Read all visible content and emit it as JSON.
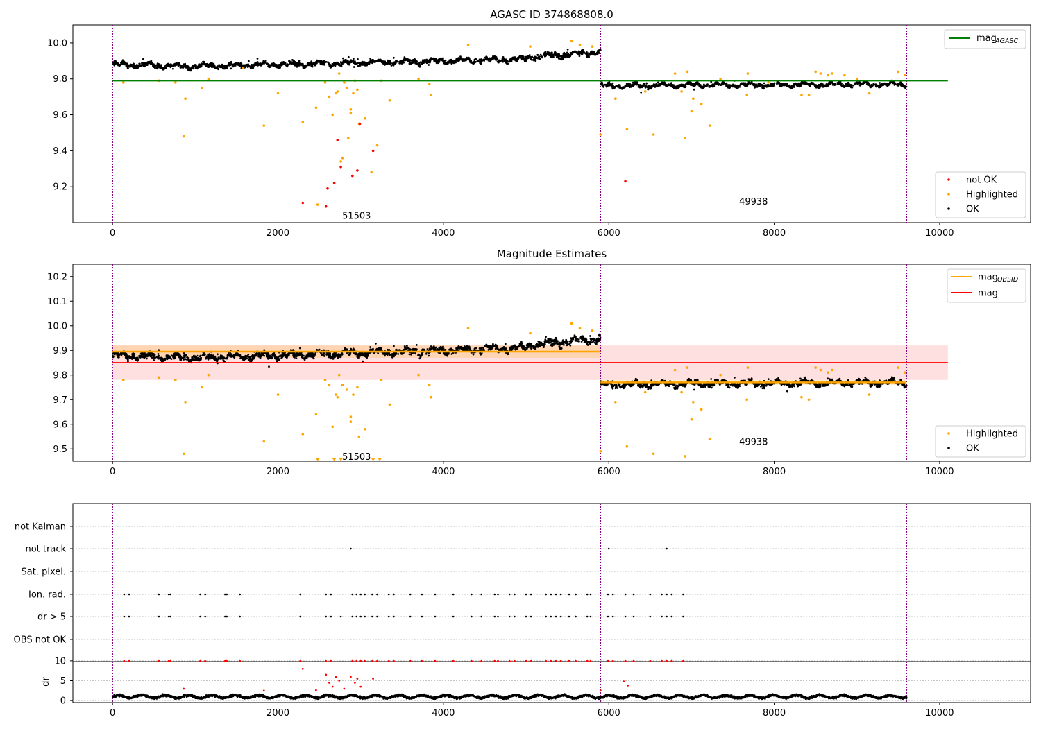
{
  "chart_data": [
    {
      "type": "scatter",
      "title": "AGASC ID 374868808.0",
      "xlim": [
        -480,
        11100
      ],
      "ylim": [
        9.0,
        10.1
      ],
      "xticks": [
        0,
        2000,
        4000,
        6000,
        8000,
        10000
      ],
      "yticks": [
        9.2,
        9.4,
        9.6,
        9.8,
        10.0
      ],
      "ytick_labels": [
        "9.2",
        "9.4",
        "9.6",
        "9.8",
        "10.0"
      ],
      "vlines": [
        0,
        5900,
        9600
      ],
      "obsid_labels": [
        {
          "text": "51503",
          "x": 2950,
          "y": 9.04
        },
        {
          "text": "49938",
          "x": 7750,
          "y": 9.12
        }
      ],
      "hline_label": "mag",
      "hline_label_sub": "AGASC",
      "mag_agasc": 9.79,
      "mag_agasc_range": [
        0,
        10100
      ],
      "legend_upper": "top-right",
      "legend_lower": "bottom-right",
      "series": [
        {
          "name": "not OK",
          "color": "#ff0000"
        },
        {
          "name": "Highlighted",
          "color": "#ffa500"
        },
        {
          "name": "OK",
          "color": "#000000"
        }
      ],
      "ok_band": [
        {
          "x0": 0,
          "x1": 1000,
          "y0": 9.88,
          "y1": 9.87,
          "spread": 0.025
        },
        {
          "x0": 1000,
          "x1": 3000,
          "y0": 9.87,
          "y1": 9.89,
          "spread": 0.025
        },
        {
          "x0": 3000,
          "x1": 5000,
          "y0": 9.89,
          "y1": 9.91,
          "spread": 0.025
        },
        {
          "x0": 5000,
          "x1": 5900,
          "y0": 9.92,
          "y1": 9.95,
          "spread": 0.03
        },
        {
          "x0": 5900,
          "x1": 7000,
          "y0": 9.76,
          "y1": 9.765,
          "spread": 0.02
        },
        {
          "x0": 7000,
          "x1": 9600,
          "y0": 9.765,
          "y1": 9.77,
          "spread": 0.02
        }
      ],
      "highlighted_points": [
        [
          130,
          9.78
        ],
        [
          560,
          9.79
        ],
        [
          760,
          9.78
        ],
        [
          860,
          9.48
        ],
        [
          880,
          9.69
        ],
        [
          1080,
          9.75
        ],
        [
          1160,
          9.8
        ],
        [
          1580,
          9.86
        ],
        [
          1830,
          9.54
        ],
        [
          2000,
          9.72
        ],
        [
          2300,
          9.56
        ],
        [
          2460,
          9.64
        ],
        [
          2480,
          9.1
        ],
        [
          2570,
          9.78
        ],
        [
          2620,
          9.7
        ],
        [
          2660,
          9.6
        ],
        [
          2700,
          9.72
        ],
        [
          2720,
          9.73
        ],
        [
          2740,
          9.83
        ],
        [
          2760,
          9.34
        ],
        [
          2780,
          9.36
        ],
        [
          2800,
          9.78
        ],
        [
          2830,
          9.75
        ],
        [
          2850,
          9.47
        ],
        [
          2880,
          9.61
        ],
        [
          2880,
          9.63
        ],
        [
          2910,
          9.72
        ],
        [
          2930,
          9.79
        ],
        [
          2960,
          9.74
        ],
        [
          2980,
          9.55
        ],
        [
          3050,
          9.58
        ],
        [
          3130,
          9.28
        ],
        [
          3200,
          9.43
        ],
        [
          3250,
          9.79
        ],
        [
          3350,
          9.68
        ],
        [
          3700,
          9.8
        ],
        [
          3830,
          9.77
        ],
        [
          3850,
          9.71
        ],
        [
          4300,
          9.99
        ],
        [
          5050,
          9.98
        ],
        [
          5550,
          10.01
        ],
        [
          5650,
          9.99
        ],
        [
          5800,
          9.98
        ],
        [
          5900,
          9.49
        ],
        [
          6080,
          9.69
        ],
        [
          6220,
          9.52
        ],
        [
          6440,
          9.73
        ],
        [
          6540,
          9.49
        ],
        [
          6800,
          9.83
        ],
        [
          6880,
          9.73
        ],
        [
          6920,
          9.47
        ],
        [
          6950,
          9.84
        ],
        [
          7000,
          9.62
        ],
        [
          7020,
          9.69
        ],
        [
          7120,
          9.66
        ],
        [
          7220,
          9.54
        ],
        [
          7350,
          9.8
        ],
        [
          7670,
          9.71
        ],
        [
          7680,
          9.83
        ],
        [
          7930,
          9.78
        ],
        [
          8330,
          9.71
        ],
        [
          8420,
          9.71
        ],
        [
          8500,
          9.84
        ],
        [
          8560,
          9.83
        ],
        [
          8650,
          9.82
        ],
        [
          8700,
          9.83
        ],
        [
          8850,
          9.82
        ],
        [
          9000,
          9.8
        ],
        [
          9150,
          9.72
        ],
        [
          9500,
          9.84
        ],
        [
          9580,
          9.82
        ]
      ],
      "notok_points": [
        [
          2300,
          9.11
        ],
        [
          2580,
          9.09
        ],
        [
          2600,
          9.19
        ],
        [
          2680,
          9.22
        ],
        [
          2720,
          9.46
        ],
        [
          2760,
          9.31
        ],
        [
          2900,
          9.26
        ],
        [
          2960,
          9.29
        ],
        [
          2990,
          9.55
        ],
        [
          3150,
          9.4
        ],
        [
          6200,
          9.23
        ]
      ]
    },
    {
      "type": "scatter",
      "title": "Magnitude Estimates",
      "xlim": [
        -480,
        11100
      ],
      "ylim": [
        9.45,
        10.25
      ],
      "xticks": [
        0,
        2000,
        4000,
        6000,
        8000,
        10000
      ],
      "yticks": [
        9.5,
        9.6,
        9.7,
        9.8,
        9.9,
        10.0,
        10.1,
        10.2
      ],
      "ytick_labels": [
        "9.5",
        "9.6",
        "9.7",
        "9.8",
        "9.9",
        "10.0",
        "10.1",
        "10.2"
      ],
      "vlines": [
        0,
        5900,
        9600
      ],
      "obsid_labels": [
        {
          "text": "51503",
          "x": 2950,
          "y": 9.47
        },
        {
          "text": "49938",
          "x": 7750,
          "y": 9.53
        }
      ],
      "mag": 9.85,
      "mag_band": [
        9.78,
        9.92
      ],
      "mag_range": [
        0,
        10100
      ],
      "mag_obsid": [
        {
          "x0": 0,
          "x1": 5900,
          "value": 9.895,
          "band": [
            9.87,
            9.92
          ]
        },
        {
          "x0": 5900,
          "x1": 9600,
          "value": 9.77,
          "band": [
            9.76,
            9.78
          ]
        }
      ],
      "legend_upper_items": [
        {
          "label": "mag",
          "sub": "OBSID",
          "color": "#ffa500"
        },
        {
          "label": "mag",
          "sub": "",
          "color": "#ff0000"
        }
      ],
      "legend_upper": "top-right",
      "legend_lower": "bottom-right",
      "series": [
        {
          "name": "Highlighted",
          "color": "#ffa500"
        },
        {
          "name": "OK",
          "color": "#000000"
        }
      ],
      "ok_band": [
        {
          "x0": 0,
          "x1": 1000,
          "y0": 9.88,
          "y1": 9.87,
          "spread": 0.025
        },
        {
          "x0": 1000,
          "x1": 3000,
          "y0": 9.87,
          "y1": 9.89,
          "spread": 0.025
        },
        {
          "x0": 3000,
          "x1": 5000,
          "y0": 9.89,
          "y1": 9.91,
          "spread": 0.025
        },
        {
          "x0": 5000,
          "x1": 5900,
          "y0": 9.92,
          "y1": 9.95,
          "spread": 0.03
        },
        {
          "x0": 5900,
          "x1": 7000,
          "y0": 9.76,
          "y1": 9.765,
          "spread": 0.02
        },
        {
          "x0": 7000,
          "x1": 9600,
          "y0": 9.765,
          "y1": 9.77,
          "spread": 0.02
        }
      ],
      "highlighted_points": [
        [
          130,
          9.78
        ],
        [
          560,
          9.79
        ],
        [
          760,
          9.78
        ],
        [
          860,
          9.48
        ],
        [
          880,
          9.69
        ],
        [
          1080,
          9.75
        ],
        [
          1160,
          9.8
        ],
        [
          1830,
          9.53
        ],
        [
          2000,
          9.72
        ],
        [
          2300,
          9.56
        ],
        [
          2460,
          9.64
        ],
        [
          2570,
          9.78
        ],
        [
          2620,
          9.76
        ],
        [
          2660,
          9.59
        ],
        [
          2700,
          9.72
        ],
        [
          2720,
          9.71
        ],
        [
          2740,
          9.8
        ],
        [
          2780,
          9.76
        ],
        [
          2830,
          9.74
        ],
        [
          2880,
          9.61
        ],
        [
          2880,
          9.63
        ],
        [
          2910,
          9.72
        ],
        [
          2960,
          9.75
        ],
        [
          2980,
          9.55
        ],
        [
          3050,
          9.58
        ],
        [
          3250,
          9.78
        ],
        [
          3350,
          9.68
        ],
        [
          3700,
          9.8
        ],
        [
          3830,
          9.76
        ],
        [
          3850,
          9.71
        ],
        [
          4300,
          9.99
        ],
        [
          5050,
          9.97
        ],
        [
          5550,
          10.01
        ],
        [
          5650,
          9.99
        ],
        [
          5800,
          9.98
        ],
        [
          5900,
          9.49
        ],
        [
          6080,
          9.69
        ],
        [
          6220,
          9.51
        ],
        [
          6440,
          9.73
        ],
        [
          6540,
          9.48
        ],
        [
          6800,
          9.82
        ],
        [
          6880,
          9.73
        ],
        [
          6920,
          9.47
        ],
        [
          6950,
          9.83
        ],
        [
          7000,
          9.62
        ],
        [
          7020,
          9.69
        ],
        [
          7120,
          9.66
        ],
        [
          7220,
          9.54
        ],
        [
          7350,
          9.8
        ],
        [
          7670,
          9.7
        ],
        [
          7680,
          9.83
        ],
        [
          8330,
          9.71
        ],
        [
          8420,
          9.7
        ],
        [
          8500,
          9.83
        ],
        [
          8560,
          9.82
        ],
        [
          8650,
          9.81
        ],
        [
          8700,
          9.82
        ],
        [
          9150,
          9.72
        ],
        [
          9500,
          9.83
        ],
        [
          9580,
          9.81
        ]
      ],
      "below_markers": [
        2480,
        2680,
        2760,
        3150,
        3230
      ]
    },
    {
      "type": "scatter",
      "xlim": [
        -480,
        11100
      ],
      "xticks": [
        0,
        2000,
        4000,
        6000,
        8000,
        10000
      ],
      "vlines": [
        0,
        5900,
        9600
      ],
      "flag_rows": [
        "not Kalman",
        "not track",
        "Sat. pixel.",
        "Ion. rad.",
        "dr > 5",
        "OBS not OK"
      ],
      "flags": {
        "not Kalman": [],
        "not track": [
          2880,
          6000,
          6700
        ],
        "Sat. pixel.": [],
        "Ion. rad.": [
          140,
          200,
          560,
          680,
          700,
          1060,
          1120,
          1360,
          1380,
          1540,
          2270,
          2580,
          2640,
          2900,
          2950,
          3000,
          3050,
          3140,
          3200,
          3340,
          3400,
          3600,
          3740,
          3900,
          4120,
          4340,
          4460,
          4620,
          4660,
          4800,
          4860,
          5000,
          5060,
          5240,
          5300,
          5360,
          5420,
          5520,
          5600,
          5740,
          5780,
          5990,
          6050,
          6200,
          6300,
          6500,
          6640,
          6700,
          6760,
          6900
        ],
        "dr > 5": [
          140,
          200,
          560,
          680,
          700,
          1060,
          1120,
          1360,
          1380,
          1540,
          2270,
          2580,
          2640,
          2760,
          2900,
          2950,
          3000,
          3050,
          3140,
          3200,
          3340,
          3400,
          3600,
          3740,
          3900,
          4120,
          4340,
          4460,
          4620,
          4660,
          4800,
          4860,
          5000,
          5060,
          5240,
          5300,
          5360,
          5420,
          5520,
          5600,
          5740,
          5780,
          5990,
          6050,
          6200,
          6300,
          6500,
          6640,
          6700,
          6760,
          6900
        ],
        "OBS not OK": []
      },
      "dr": {
        "ylabel": "dr",
        "ylim": [
          -0.5,
          10.5
        ],
        "yticks": [
          0,
          5,
          10
        ],
        "ytick_labels": [
          "0",
          "5",
          "10"
        ],
        "baseline": 1.0,
        "capped_at": 10,
        "capped_x": [
          140,
          200,
          560,
          680,
          700,
          1060,
          1120,
          1360,
          1380,
          1540,
          2270,
          2580,
          2640,
          2900,
          2950,
          3000,
          3050,
          3140,
          3200,
          3340,
          3400,
          3600,
          3740,
          3900,
          4120,
          4340,
          4460,
          4620,
          4660,
          4800,
          4860,
          5000,
          5060,
          5240,
          5300,
          5360,
          5420,
          5520,
          5600,
          5740,
          5780,
          5990,
          6050,
          6200,
          6300,
          6500,
          6640,
          6700,
          6760,
          6900
        ],
        "red_points": [
          [
            2300,
            8
          ],
          [
            2580,
            6.5
          ],
          [
            2620,
            4.5
          ],
          [
            2660,
            3.5
          ],
          [
            2700,
            6
          ],
          [
            2740,
            5
          ],
          [
            2800,
            3
          ],
          [
            2880,
            6
          ],
          [
            2930,
            4.5
          ],
          [
            2960,
            5.5
          ],
          [
            3000,
            3.5
          ],
          [
            3150,
            5.5
          ],
          [
            6180,
            4.8
          ],
          [
            6230,
            3.8
          ],
          [
            860,
            3
          ],
          [
            1830,
            2.5
          ],
          [
            2460,
            2.6
          ],
          [
            5900,
            2.5
          ]
        ]
      }
    }
  ]
}
